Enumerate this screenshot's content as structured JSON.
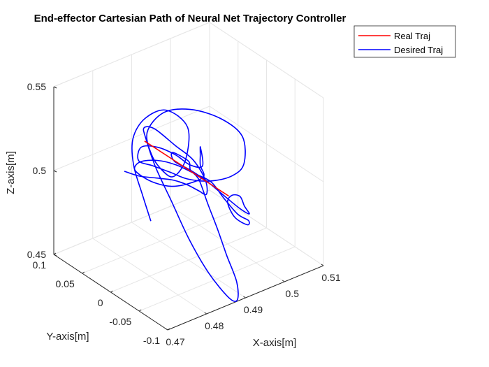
{
  "chart_data": {
    "type": "line3d",
    "title": "End-effector Cartesian Path of Neural Net Trajectory Controller",
    "xlabel": "X-axis[m]",
    "ylabel": "Y-axis[m]",
    "zlabel": "Z-axis[m]",
    "xlim": [
      0.47,
      0.51
    ],
    "ylim": [
      -0.1,
      0.1
    ],
    "zlim": [
      0.45,
      0.55
    ],
    "xticks": [
      "0.47",
      "0.48",
      "0.49",
      "0.5",
      "0.51"
    ],
    "yticks": [
      "-0.1",
      "-0.05",
      "0",
      "0.05",
      "0.1"
    ],
    "zticks": [
      "0.45",
      "0.5",
      "0.55"
    ],
    "grid": true,
    "legend_position": "top-right",
    "colors": {
      "real": "#ff0000",
      "desired": "#0000ff"
    },
    "series": [
      {
        "name": "Real Traj",
        "color": "#ff0000",
        "points": [
          [
            0.486,
            0.05,
            0.5135
          ],
          [
            0.4895,
            0.0,
            0.505
          ],
          [
            0.493,
            -0.05,
            0.4965
          ]
        ]
      },
      {
        "name": "Desired Traj",
        "color": "#0000ff",
        "points": [
          [
            0.4803,
            0.0,
            0.4825
          ],
          [
            0.4808,
            0.018,
            0.4935
          ],
          [
            0.482,
            0.042,
            0.505
          ],
          [
            0.4842,
            0.058,
            0.515
          ],
          [
            0.4868,
            0.055,
            0.525
          ],
          [
            0.4888,
            0.031,
            0.5335
          ],
          [
            0.4893,
            -0.003,
            0.5305
          ],
          [
            0.4878,
            -0.01,
            0.5145
          ],
          [
            0.4863,
            0.0,
            0.5035
          ],
          [
            0.4869,
            0.023,
            0.5005
          ],
          [
            0.488,
            0.051,
            0.503
          ],
          [
            0.4902,
            0.074,
            0.5095
          ],
          [
            0.4928,
            0.063,
            0.521
          ],
          [
            0.4956,
            0.035,
            0.5265
          ],
          [
            0.4982,
            0.0,
            0.5265
          ],
          [
            0.4988,
            -0.034,
            0.523
          ],
          [
            0.4972,
            -0.048,
            0.5115
          ],
          [
            0.4952,
            -0.041,
            0.5045
          ],
          [
            0.4923,
            -0.0225,
            0.5
          ],
          [
            0.4898,
            0.0,
            0.4985
          ],
          [
            0.4882,
            0.0205,
            0.4995
          ],
          [
            0.4866,
            0.0398,
            0.5005
          ],
          [
            0.4852,
            0.055,
            0.5015
          ],
          [
            0.4866,
            0.06,
            0.507
          ],
          [
            0.4882,
            0.042,
            0.5095
          ],
          [
            0.4896,
            0.02,
            0.5085
          ],
          [
            0.4903,
            0.0,
            0.5065
          ],
          [
            0.4918,
            -0.012,
            0.507
          ],
          [
            0.4926,
            -0.0028,
            0.5155
          ],
          [
            0.493,
            0.0,
            0.5095
          ],
          [
            0.4926,
            -0.0028,
            0.5045
          ],
          [
            0.4921,
            -0.012,
            0.5005
          ],
          [
            0.4903,
            0.0,
            0.4955
          ],
          [
            0.4883,
            0.018,
            0.4915
          ],
          [
            0.4873,
            0.04,
            0.4895
          ],
          [
            0.4864,
            0.058,
            0.4905
          ],
          [
            0.4858,
            0.0663,
            0.4935
          ],
          [
            0.4864,
            0.06,
            0.4985
          ],
          [
            0.4878,
            0.04,
            0.5025
          ],
          [
            0.4897,
            0.02,
            0.5025
          ],
          [
            0.4913,
            0.0,
            0.5005
          ],
          [
            0.4928,
            -0.02,
            0.4985
          ],
          [
            0.4938,
            -0.035,
            0.4915
          ],
          [
            0.4953,
            -0.05,
            0.4835
          ],
          [
            0.4963,
            -0.062,
            0.4815
          ],
          [
            0.4963,
            -0.06,
            0.4785
          ],
          [
            0.4953,
            -0.045,
            0.4805
          ],
          [
            0.4949,
            -0.035,
            0.4875
          ],
          [
            0.4953,
            -0.04,
            0.4925
          ],
          [
            0.4959,
            -0.05,
            0.4935
          ],
          [
            0.4963,
            -0.055,
            0.4885
          ],
          [
            0.4968,
            -0.06,
            0.4845
          ],
          [
            0.4958,
            -0.05,
            0.4865
          ],
          [
            0.4943,
            -0.035,
            0.4915
          ],
          [
            0.4923,
            -0.015,
            0.4985
          ],
          [
            0.4903,
            0.0,
            0.5035
          ],
          [
            0.4883,
            0.0134,
            0.5075
          ],
          [
            0.4873,
            0.0099,
            0.5145
          ],
          [
            0.4886,
            -0.0083,
            0.5125
          ],
          [
            0.4903,
            0.0,
            0.5055
          ],
          [
            0.4923,
            0.012,
            0.4985
          ],
          [
            0.4938,
            0.008,
            0.4925
          ],
          [
            0.4927,
            -0.015,
            0.4845
          ],
          [
            0.4913,
            -0.042,
            0.4765
          ],
          [
            0.4898,
            -0.068,
            0.4685
          ],
          [
            0.4886,
            -0.094,
            0.4595
          ],
          [
            0.4876,
            -0.102,
            0.4515
          ],
          [
            0.4868,
            -0.092,
            0.4515
          ],
          [
            0.4863,
            -0.0605,
            0.4595
          ],
          [
            0.4868,
            -0.023,
            0.4705
          ],
          [
            0.4886,
            0.02,
            0.4815
          ],
          [
            0.4903,
            0.06,
            0.4915
          ],
          [
            0.4916,
            0.086,
            0.5015
          ],
          [
            0.4923,
            0.094,
            0.5055
          ],
          [
            0.4933,
            0.082,
            0.5065
          ],
          [
            0.4946,
            0.055,
            0.5015
          ],
          [
            0.4948,
            0.025,
            0.4995
          ],
          [
            0.4943,
            0.0,
            0.4935
          ],
          [
            0.4923,
            -0.0155,
            0.4905
          ],
          [
            0.4903,
            -0.015,
            0.4945
          ],
          [
            0.4883,
            -0.0085,
            0.4985
          ],
          [
            0.486,
            0.0,
            0.5015
          ],
          [
            0.4838,
            0.015,
            0.5015
          ],
          [
            0.482,
            0.032,
            0.5005
          ],
          [
            0.4808,
            0.05,
            0.5005
          ]
        ]
      }
    ]
  }
}
